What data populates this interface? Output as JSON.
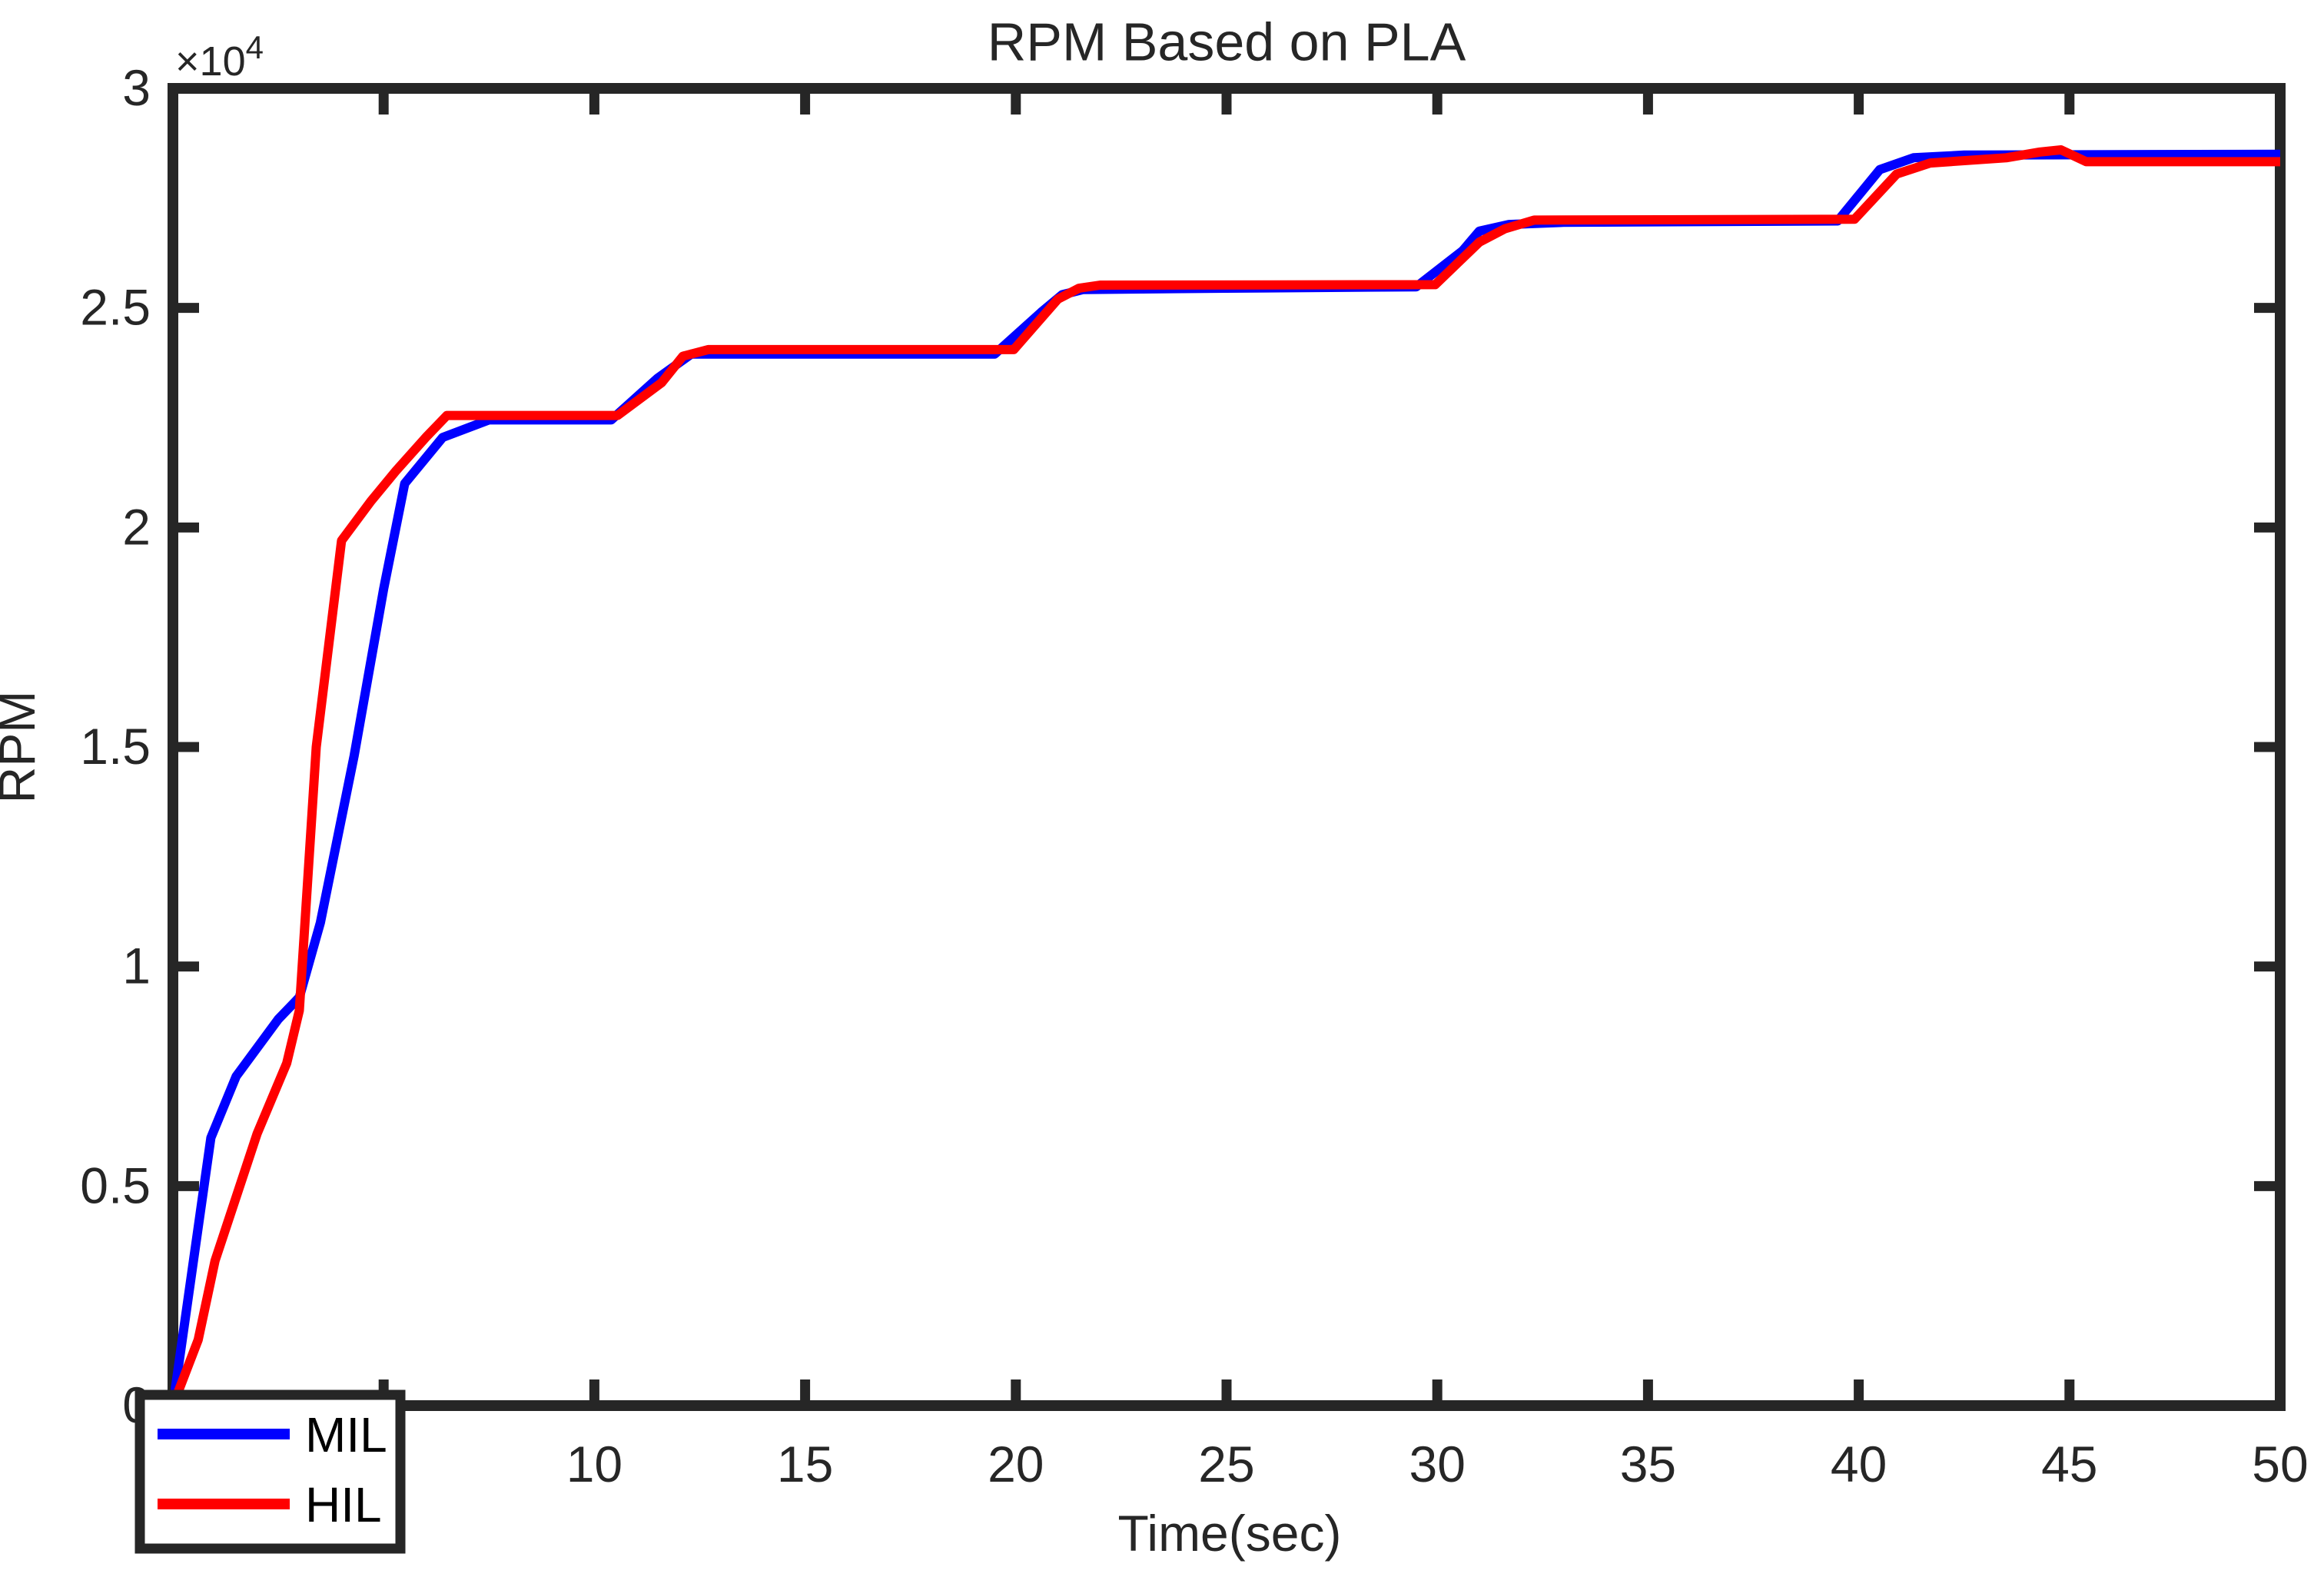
{
  "figure": {
    "background": "#FFFFFF",
    "axes_color": "#262626",
    "text_color": "#262626",
    "legend_text_color": "#000000"
  },
  "chart_data": {
    "type": "line",
    "title": "RPM Based on PLA",
    "xlabel": "Time(sec)",
    "ylabel": "RPM",
    "y_exponent_label": "×10",
    "y_exponent_power": "4",
    "xlim": [
      0,
      50
    ],
    "ylim": [
      0,
      30000
    ],
    "grid": false,
    "x_ticks": [
      0,
      5,
      10,
      15,
      20,
      25,
      30,
      35,
      40,
      45,
      50
    ],
    "x_tick_labels": [
      "",
      "",
      "10",
      "15",
      "20",
      "25",
      "30",
      "35",
      "40",
      "45",
      "50"
    ],
    "y_ticks": [
      0,
      5000,
      10000,
      15000,
      20000,
      25000,
      30000
    ],
    "y_tick_labels": [
      "0",
      "0.5",
      "1",
      "1.5",
      "2",
      "2.5",
      "3"
    ],
    "legend": {
      "position": "bottom-left",
      "entries": [
        {
          "label": "MIL",
          "color": "#0000FF"
        },
        {
          "label": "HIL",
          "color": "#FF0000"
        }
      ]
    },
    "series": [
      {
        "name": "MIL",
        "color": "#0000FF",
        "points": [
          [
            0,
            0
          ],
          [
            0.9,
            6100
          ],
          [
            1.5,
            7500
          ],
          [
            2.5,
            8800
          ],
          [
            3.0,
            9300
          ],
          [
            3.5,
            11000
          ],
          [
            4.3,
            14800
          ],
          [
            5.0,
            18600
          ],
          [
            5.5,
            21000
          ],
          [
            6.4,
            22050
          ],
          [
            7.5,
            22450
          ],
          [
            10.4,
            22450
          ],
          [
            11.5,
            23400
          ],
          [
            12.3,
            23950
          ],
          [
            19.5,
            23950
          ],
          [
            20.6,
            24900
          ],
          [
            21.1,
            25300
          ],
          [
            21.6,
            25420
          ],
          [
            25,
            25450
          ],
          [
            29.5,
            25480
          ],
          [
            30.6,
            26300
          ],
          [
            31.0,
            26750
          ],
          [
            31.7,
            26900
          ],
          [
            33,
            26950
          ],
          [
            39.5,
            26980
          ],
          [
            40.5,
            28150
          ],
          [
            41.3,
            28420
          ],
          [
            42.5,
            28480
          ],
          [
            50,
            28500
          ]
        ]
      },
      {
        "name": "HIL",
        "color": "#FF0000",
        "points": [
          [
            0,
            0
          ],
          [
            0.6,
            1500
          ],
          [
            1.0,
            3300
          ],
          [
            2.0,
            6200
          ],
          [
            2.7,
            7800
          ],
          [
            3.0,
            9000
          ],
          [
            3.4,
            15000
          ],
          [
            4.0,
            19700
          ],
          [
            4.7,
            20600
          ],
          [
            5.3,
            21300
          ],
          [
            6.0,
            22050
          ],
          [
            6.5,
            22550
          ],
          [
            10.55,
            22550
          ],
          [
            11.6,
            23300
          ],
          [
            12.1,
            23900
          ],
          [
            12.7,
            24050
          ],
          [
            19.95,
            24050
          ],
          [
            21.0,
            25200
          ],
          [
            21.5,
            25450
          ],
          [
            22,
            25520
          ],
          [
            29.95,
            25530
          ],
          [
            31.0,
            26500
          ],
          [
            31.6,
            26800
          ],
          [
            32.3,
            27000
          ],
          [
            39.9,
            27020
          ],
          [
            40.9,
            28050
          ],
          [
            41.7,
            28300
          ],
          [
            43.5,
            28420
          ],
          [
            44.3,
            28550
          ],
          [
            44.8,
            28600
          ],
          [
            45.4,
            28330
          ],
          [
            50,
            28330
          ]
        ]
      }
    ]
  }
}
